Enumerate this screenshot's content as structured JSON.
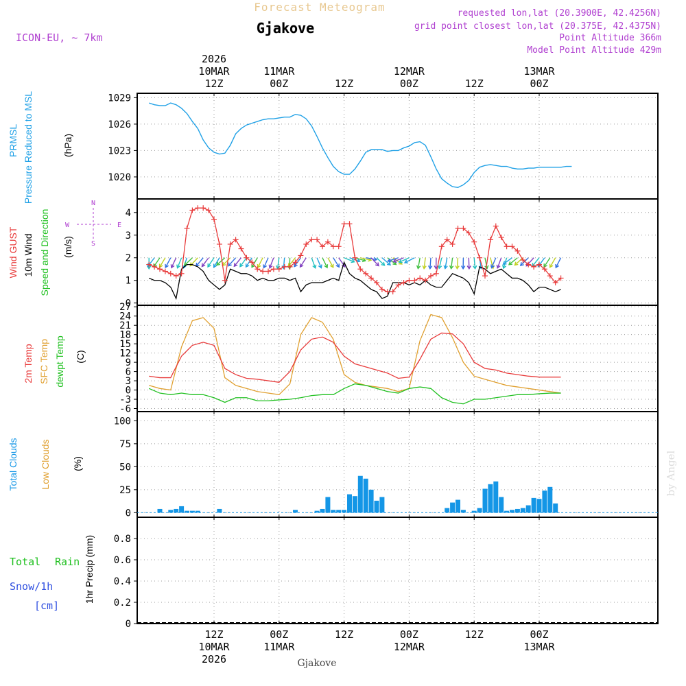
{
  "header": {
    "product": "Forecast Meteogram",
    "location": "Gjakove",
    "model": "ICON-EU, ~ 7km",
    "requested": "requested lon,lat (20.3900E, 42.4256N)",
    "gridpoint": "grid point closest lon,lat (20.375E, 42.4375N)",
    "point_alt": "Point Altitude 366m",
    "model_alt": "Model Point Altitude 429m",
    "footer_location": "Gjakove",
    "credit": "by Angel"
  },
  "colors": {
    "pressure": "#1ea0e6",
    "gust": "#e83a3a",
    "wind": "#000000",
    "temp2m": "#e83a3a",
    "sfc": "#e0a030",
    "dew": "#20c020",
    "total_clouds": "#1496e6",
    "low_clouds": "#e0a030",
    "rain": "#20c020",
    "snow": "#3050e0",
    "header_purple": "#b040d0"
  },
  "time_axis": {
    "top": [
      {
        "h": 12,
        "lines": [
          "2026",
          "10MAR",
          "12Z"
        ]
      },
      {
        "h": 24,
        "lines": [
          "11MAR",
          "00Z"
        ]
      },
      {
        "h": 36,
        "lines": [
          "12Z"
        ]
      },
      {
        "h": 48,
        "lines": [
          "12MAR",
          "00Z"
        ]
      },
      {
        "h": 60,
        "lines": [
          "12Z"
        ]
      },
      {
        "h": 72,
        "lines": [
          "13MAR",
          "00Z"
        ]
      }
    ],
    "bottom": [
      {
        "h": 12,
        "lines": [
          "12Z",
          "10MAR",
          "2026"
        ]
      },
      {
        "h": 24,
        "lines": [
          "00Z",
          "11MAR"
        ]
      },
      {
        "h": 36,
        "lines": [
          "12Z"
        ]
      },
      {
        "h": 48,
        "lines": [
          "00Z",
          "12MAR"
        ]
      },
      {
        "h": 60,
        "lines": [
          "12Z"
        ]
      },
      {
        "h": 72,
        "lines": [
          "00Z",
          "13MAR"
        ]
      }
    ]
  },
  "chart_data": [
    {
      "type": "line",
      "id": "pressure",
      "labels": [
        "PRMSL",
        "Pressure Reduced to MSL",
        "(hPa)"
      ],
      "ylim": [
        1017.5,
        1029.5
      ],
      "yticks": [
        1020,
        1023,
        1026,
        1029
      ],
      "series": [
        {
          "name": "PRMSL",
          "x": [
            0,
            1,
            2,
            3,
            4,
            5,
            6,
            7,
            8,
            9,
            10,
            11,
            12,
            13,
            14,
            15,
            16,
            17,
            18,
            19,
            20,
            21,
            22,
            23,
            24,
            25,
            26,
            27,
            28,
            29,
            30,
            31,
            32,
            33,
            34,
            35,
            36,
            37,
            38,
            39,
            40,
            41,
            42,
            43,
            44,
            45,
            46,
            47,
            48,
            49,
            50,
            51,
            52,
            53,
            54,
            55,
            56,
            57,
            58,
            59,
            60,
            61,
            62,
            63,
            64,
            65,
            66,
            67,
            68,
            69,
            70,
            71,
            72,
            73,
            74,
            75,
            76,
            77,
            78
          ],
          "values": [
            1028.4,
            1028.2,
            1028.1,
            1028.1,
            1028.4,
            1028.2,
            1027.8,
            1027.2,
            1026.3,
            1025.5,
            1024.2,
            1023.3,
            1022.8,
            1022.6,
            1022.7,
            1023.6,
            1024.9,
            1025.5,
            1025.9,
            1026.1,
            1026.3,
            1026.5,
            1026.6,
            1026.6,
            1026.7,
            1026.8,
            1026.8,
            1027.1,
            1027.0,
            1026.6,
            1025.8,
            1024.6,
            1023.3,
            1022.2,
            1021.2,
            1020.6,
            1020.3,
            1020.3,
            1020.9,
            1021.8,
            1022.8,
            1023.1,
            1023.1,
            1023.1,
            1022.9,
            1023.0,
            1023.0,
            1023.3,
            1023.5,
            1023.9,
            1024.0,
            1023.6,
            1022.3,
            1020.9,
            1019.8,
            1019.3,
            1018.9,
            1018.8,
            1019.1,
            1019.6,
            1020.5,
            1021.1,
            1021.3,
            1021.4,
            1021.3,
            1021.2,
            1021.2,
            1021.0,
            1020.9,
            1020.9,
            1021.0,
            1021.0,
            1021.1,
            1021.1,
            1021.1,
            1021.1,
            1021.1,
            1021.2,
            1021.2
          ]
        }
      ]
    },
    {
      "type": "line",
      "id": "wind",
      "labels": [
        "Wind GUST",
        "10m Wind",
        "Speed and Direction",
        "(m/s)"
      ],
      "compass": {
        "n": "N",
        "s": "S",
        "w": "W",
        "e": "E"
      },
      "ylim": [
        -0.1,
        4.6
      ],
      "yticks": [
        0,
        1,
        2,
        3,
        4
      ],
      "series": [
        {
          "name": "Wind GUST",
          "x": [
            0,
            1,
            2,
            3,
            4,
            5,
            6,
            7,
            8,
            9,
            10,
            11,
            12,
            13,
            14,
            15,
            16,
            17,
            18,
            19,
            20,
            21,
            22,
            23,
            24,
            25,
            26,
            27,
            28,
            29,
            30,
            31,
            32,
            33,
            34,
            35,
            36,
            37,
            38,
            39,
            40,
            41,
            42,
            43,
            44,
            45,
            46,
            47,
            48,
            49,
            50,
            51,
            52,
            53,
            54,
            55,
            56,
            57,
            58,
            59,
            60,
            61,
            62,
            63,
            64,
            65,
            66,
            67,
            68,
            69,
            70,
            71,
            72,
            73,
            74,
            75,
            76
          ],
          "values": [
            1.7,
            1.6,
            1.5,
            1.4,
            1.3,
            1.2,
            1.3,
            3.3,
            4.1,
            4.2,
            4.2,
            4.1,
            3.7,
            2.6,
            1.0,
            2.6,
            2.8,
            2.4,
            2.0,
            1.8,
            1.5,
            1.4,
            1.4,
            1.5,
            1.5,
            1.6,
            1.6,
            1.8,
            2.1,
            2.6,
            2.8,
            2.8,
            2.5,
            2.7,
            2.5,
            2.5,
            3.5,
            3.5,
            2.0,
            1.5,
            1.3,
            1.1,
            0.9,
            0.6,
            0.5,
            0.5,
            0.8,
            0.9,
            1.0,
            1.0,
            1.1,
            1.0,
            1.2,
            1.3,
            2.5,
            2.8,
            2.6,
            3.3,
            3.3,
            3.1,
            2.7,
            2.0,
            1.2,
            2.8,
            3.4,
            2.9,
            2.5,
            2.5,
            2.3,
            1.9,
            1.7,
            1.6,
            1.7,
            1.5,
            1.2,
            0.9,
            1.1
          ]
        },
        {
          "name": "10m Wind",
          "x": [
            0,
            1,
            2,
            3,
            4,
            5,
            6,
            7,
            8,
            9,
            10,
            11,
            12,
            13,
            14,
            15,
            16,
            17,
            18,
            19,
            20,
            21,
            22,
            23,
            24,
            25,
            26,
            27,
            28,
            29,
            30,
            31,
            32,
            33,
            34,
            35,
            36,
            37,
            38,
            39,
            40,
            41,
            42,
            43,
            44,
            45,
            46,
            47,
            48,
            49,
            50,
            51,
            52,
            53,
            54,
            55,
            56,
            57,
            58,
            59,
            60,
            61,
            62,
            63,
            64,
            65,
            66,
            67,
            68,
            69,
            70,
            71,
            72,
            73,
            74,
            75,
            76
          ],
          "values": [
            1.1,
            1.0,
            1.0,
            0.9,
            0.7,
            0.2,
            1.5,
            1.7,
            1.7,
            1.6,
            1.4,
            1.0,
            0.8,
            0.6,
            0.8,
            1.5,
            1.4,
            1.3,
            1.3,
            1.2,
            1.0,
            1.1,
            1.0,
            1.0,
            1.1,
            1.1,
            1.0,
            1.1,
            0.5,
            0.8,
            0.9,
            0.9,
            0.9,
            1.0,
            1.1,
            1.0,
            1.8,
            1.3,
            1.1,
            1.0,
            0.8,
            0.6,
            0.5,
            0.2,
            0.3,
            0.9,
            0.9,
            0.9,
            0.8,
            0.9,
            0.8,
            1.0,
            0.8,
            0.7,
            0.7,
            1.0,
            1.3,
            1.2,
            1.1,
            0.9,
            0.4,
            1.6,
            1.5,
            1.3,
            1.4,
            1.5,
            1.3,
            1.1,
            1.1,
            1.0,
            0.8,
            0.5,
            0.7,
            0.7,
            0.6,
            0.5,
            0.6
          ]
        }
      ]
    },
    {
      "type": "line",
      "id": "temperature",
      "labels": [
        "2m Temp",
        "SFC Temp",
        "dewpt Temp",
        "(C)"
      ],
      "ylim": [
        -7,
        27.5
      ],
      "yticks": [
        -6,
        -3,
        0,
        3,
        6,
        9,
        12,
        15,
        18,
        21,
        24,
        27
      ],
      "series": [
        {
          "name": "2m Temp",
          "x": [
            0,
            2,
            4,
            6,
            8,
            10,
            12,
            14,
            16,
            18,
            20,
            22,
            24,
            26,
            28,
            30,
            32,
            34,
            36,
            38,
            40,
            42,
            44,
            46,
            48,
            50,
            52,
            54,
            56,
            58,
            60,
            62,
            64,
            66,
            68,
            70,
            72,
            74,
            76
          ],
          "values": [
            4.5,
            4.0,
            4.0,
            11.0,
            14.5,
            15.5,
            14.5,
            7.0,
            5.0,
            3.8,
            3.5,
            3.0,
            2.5,
            6.0,
            13.0,
            16.5,
            17.2,
            15.5,
            11.0,
            8.5,
            7.5,
            6.5,
            5.5,
            3.8,
            4.2,
            10.0,
            16.5,
            18.5,
            18.2,
            15.0,
            9.0,
            7.0,
            6.5,
            5.5,
            5.0,
            4.5,
            4.2,
            4.2,
            4.2
          ]
        },
        {
          "name": "SFC Temp",
          "x": [
            0,
            2,
            4,
            6,
            8,
            10,
            12,
            14,
            16,
            18,
            20,
            22,
            24,
            26,
            28,
            30,
            32,
            34,
            36,
            38,
            40,
            42,
            44,
            46,
            48,
            50,
            52,
            54,
            56,
            58,
            60,
            62,
            64,
            66,
            68,
            70,
            72,
            74,
            76
          ],
          "values": [
            1.5,
            0.5,
            0.0,
            14.0,
            22.5,
            23.5,
            20.0,
            4.0,
            1.5,
            0.5,
            -0.5,
            -1.0,
            -1.5,
            2.0,
            18.0,
            23.5,
            22.0,
            16.5,
            5.0,
            2.5,
            1.5,
            1.0,
            0.5,
            -0.5,
            0.5,
            16.0,
            24.5,
            23.5,
            17.0,
            9.0,
            4.5,
            3.5,
            2.5,
            1.5,
            1.0,
            0.5,
            0.0,
            -0.5,
            -1.0
          ]
        },
        {
          "name": "dewpt Temp",
          "x": [
            0,
            2,
            4,
            6,
            8,
            10,
            12,
            14,
            16,
            18,
            20,
            22,
            24,
            26,
            28,
            30,
            32,
            34,
            36,
            38,
            40,
            42,
            44,
            46,
            48,
            50,
            52,
            54,
            56,
            58,
            60,
            62,
            64,
            66,
            68,
            70,
            72,
            74,
            76
          ],
          "values": [
            0.5,
            -1.0,
            -1.5,
            -1.0,
            -1.5,
            -1.5,
            -2.5,
            -4.0,
            -2.5,
            -2.5,
            -3.5,
            -3.5,
            -3.2,
            -3.0,
            -2.5,
            -1.8,
            -1.5,
            -1.5,
            0.5,
            2.0,
            1.5,
            0.5,
            -0.5,
            -1.0,
            0.5,
            1.0,
            0.5,
            -2.5,
            -4.0,
            -4.5,
            -3.0,
            -3.0,
            -2.5,
            -2.0,
            -1.5,
            -1.5,
            -1.2,
            -1.0,
            -1.0
          ]
        }
      ]
    },
    {
      "type": "bar",
      "id": "clouds",
      "labels": [
        "Total Clouds",
        "Low Clouds",
        "(%)"
      ],
      "ylim": [
        -5,
        110
      ],
      "yticks": [
        0,
        25,
        50,
        75,
        100
      ],
      "series": [
        {
          "name": "Total Clouds",
          "x": [
            2,
            4,
            5,
            6,
            7,
            8,
            9,
            13,
            27,
            31,
            32,
            33,
            34,
            35,
            36,
            37,
            38,
            39,
            40,
            41,
            42,
            43,
            55,
            56,
            57,
            58,
            60,
            61,
            62,
            63,
            64,
            65,
            66,
            67,
            68,
            69,
            70,
            71,
            72,
            73,
            74,
            75,
            76
          ],
          "values": [
            4,
            3,
            4,
            7,
            2,
            2,
            2,
            4,
            3,
            2,
            4,
            17,
            3,
            3,
            3,
            20,
            18,
            40,
            37,
            25,
            13,
            17,
            5,
            11,
            14,
            3,
            2,
            5,
            26,
            31,
            34,
            17,
            2,
            3,
            4,
            5,
            8,
            16,
            15,
            24,
            28,
            10,
            0
          ]
        },
        {
          "name": "Low Clouds",
          "x": [],
          "values": []
        }
      ]
    },
    {
      "type": "bar",
      "id": "precip",
      "labels": [
        "Total",
        "Rain",
        "Snow/1h",
        "[cm]",
        "1hr Precip (mm)"
      ],
      "ylim": [
        0,
        1.0
      ],
      "yticks": [
        0,
        0.2,
        0.4,
        0.6,
        0.8
      ],
      "series": [
        {
          "name": "Total Rain",
          "x": [],
          "values": []
        },
        {
          "name": "Snow/1h",
          "x": [],
          "values": []
        }
      ]
    }
  ]
}
